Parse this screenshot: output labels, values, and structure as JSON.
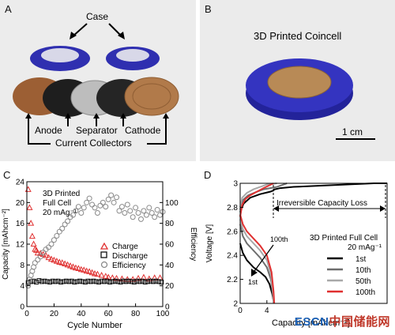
{
  "panels": {
    "a": {
      "label": "A",
      "case_label": "Case",
      "part_labels": [
        "Anode",
        "Separator",
        "Cathode"
      ],
      "collector_label": "Current Collectors"
    },
    "b": {
      "label": "B",
      "title": "3D Printed Coincell",
      "scale_label": "1 cm"
    },
    "c": {
      "label": "C",
      "annotation_lines": [
        "3D Printed",
        "Full Cell",
        "20 mAg⁻¹"
      ],
      "legend": [
        "Charge",
        "Discharge",
        "Efficiency"
      ]
    },
    "d": {
      "label": "D",
      "annotations": {
        "capacity_loss": "Irreversible Capacity Loss",
        "hundredth": "100th",
        "first": "1st"
      },
      "legend_title_lines": [
        "3D Printed Full Cell",
        "20 mAg⁻¹"
      ],
      "legend": [
        "1st",
        "10th",
        "50th",
        "100th"
      ]
    }
  },
  "chart_data": [
    {
      "type": "scatter",
      "panel": "C",
      "xlabel": "Cycle Number",
      "ylabel": "Capacity [mAhcm⁻²]",
      "y2label": "Efficiency",
      "xlim": [
        0,
        100
      ],
      "ylim": [
        0,
        24
      ],
      "y2lim": [
        0,
        120
      ],
      "xticks": [
        0,
        20,
        40,
        60,
        80,
        100
      ],
      "yticks": [
        0,
        4,
        8,
        12,
        16,
        20,
        24
      ],
      "y2ticks": [
        0,
        20,
        40,
        60,
        80,
        100
      ],
      "grid": false,
      "legend_position": "center-right",
      "series": [
        {
          "name": "Charge",
          "color": "#e03030",
          "marker": "triangle",
          "x": [
            1,
            2,
            3,
            4,
            5,
            6,
            7,
            8,
            10,
            12,
            14,
            16,
            18,
            20,
            22,
            24,
            26,
            28,
            30,
            32,
            34,
            36,
            38,
            40,
            42,
            44,
            46,
            48,
            50,
            52,
            55,
            58,
            60,
            63,
            66,
            70,
            74,
            78,
            82,
            86,
            90,
            94,
            98
          ],
          "values": [
            22.5,
            19,
            16,
            13.5,
            12,
            11,
            10.8,
            10.3,
            10.2,
            10,
            9.8,
            9.4,
            9.1,
            8.9,
            8.7,
            8.5,
            8.4,
            8.2,
            8,
            7.8,
            7.6,
            7.4,
            7.3,
            7.1,
            7,
            6.8,
            6.7,
            6.5,
            6.3,
            6.2,
            6,
            5.8,
            5.6,
            5.5,
            5.4,
            5.3,
            5.2,
            5.2,
            5.4,
            5.6,
            5.3,
            5.5,
            5.5
          ]
        },
        {
          "name": "Discharge",
          "color": "#111111",
          "marker": "square",
          "x": [
            1,
            3,
            5,
            7,
            9,
            11,
            13,
            15,
            17,
            19,
            21,
            23,
            25,
            27,
            29,
            31,
            33,
            35,
            37,
            39,
            41,
            43,
            45,
            47,
            49,
            51,
            53,
            55,
            57,
            59,
            61,
            63,
            65,
            67,
            69,
            71,
            73,
            75,
            77,
            79,
            81,
            83,
            85,
            87,
            89,
            91,
            93,
            95,
            97,
            99
          ],
          "values": [
            4.6,
            4.8,
            4.9,
            4.7,
            5,
            4.8,
            4.9,
            4.8,
            4.7,
            4.9,
            4.8,
            4.9,
            4.7,
            4.8,
            4.9,
            4.8,
            4.9,
            4.7,
            4.8,
            4.9,
            4.8,
            4.7,
            4.9,
            4.8,
            4.9,
            4.8,
            4.7,
            4.9,
            4.8,
            4.9,
            4.7,
            4.8,
            4.9,
            4.8,
            4.7,
            4.9,
            4.8,
            4.9,
            4.8,
            4.7,
            4.9,
            4.8,
            4.9,
            4.7,
            4.8,
            4.9,
            4.8,
            4.9,
            4.8,
            4.7
          ]
        },
        {
          "name": "Efficiency",
          "color": "#8a8a8a",
          "marker": "circle",
          "axis": "right",
          "x": [
            1,
            2,
            3,
            4,
            5,
            6,
            8,
            10,
            12,
            14,
            16,
            18,
            20,
            22,
            24,
            26,
            28,
            30,
            32,
            34,
            36,
            38,
            40,
            42,
            44,
            46,
            48,
            50,
            52,
            54,
            56,
            58,
            60,
            62,
            64,
            66,
            68,
            70,
            72,
            74,
            76,
            78,
            80,
            82,
            84,
            86,
            88,
            90,
            92,
            94,
            96,
            98,
            100
          ],
          "values": [
            20,
            26,
            30,
            34,
            38,
            42,
            45,
            48,
            52,
            55,
            57,
            60,
            64,
            68,
            72,
            75,
            79,
            82,
            86,
            88,
            92,
            96,
            90,
            95,
            100,
            104,
            98,
            95,
            90,
            97,
            100,
            96,
            103,
            107,
            100,
            105,
            92,
            96,
            90,
            98,
            92,
            86,
            95,
            90,
            84,
            92,
            88,
            95,
            90,
            86,
            93,
            88,
            91
          ]
        }
      ]
    },
    {
      "type": "line",
      "panel": "D",
      "xlabel": "Capacity [mAhcm⁻²]",
      "ylabel": "Voltage [V]",
      "xlim": [
        0,
        22
      ],
      "ylim": [
        2,
        3
      ],
      "xticks": [
        0,
        4
      ],
      "yticks": [
        2,
        2.2,
        2.4,
        2.6,
        2.8,
        3
      ],
      "grid": false,
      "legend_position": "lower-right",
      "series": [
        {
          "name": "1st",
          "color": "#000000",
          "x": [
            0,
            0.5,
            1.5,
            3,
            4.5,
            5,
            5.1,
            5.2,
            6,
            8,
            12,
            16,
            18,
            20,
            21.5,
            22
          ],
          "y": [
            2.76,
            2.83,
            2.88,
            2.91,
            2.93,
            2.94,
            2.95,
            2.95,
            2.96,
            2.97,
            2.98,
            2.99,
            2.995,
            3,
            3,
            3
          ]
        },
        {
          "name": "10th",
          "color": "#6d6d6d",
          "x": [
            0,
            0.4,
            1.2,
            2.5,
            3.5,
            4.5,
            5.5,
            6.5,
            7
          ],
          "y": [
            2.78,
            2.86,
            2.9,
            2.93,
            2.95,
            2.96,
            2.97,
            2.99,
            3
          ]
        },
        {
          "name": "50th",
          "color": "#a8a8a8",
          "x": [
            0,
            0.3,
            1,
            2,
            3,
            4,
            5.5
          ],
          "y": [
            2.8,
            2.88,
            2.92,
            2.95,
            2.97,
            2.99,
            3
          ]
        },
        {
          "name": "100th",
          "color": "#e03030",
          "x": [
            0,
            0.3,
            0.8,
            1.5,
            2.5,
            3.5,
            5
          ],
          "y": [
            2.72,
            2.82,
            2.87,
            2.9,
            2.93,
            2.96,
            3
          ]
        }
      ]
    }
  ],
  "discharge_curves": [
    {
      "name": "1st",
      "color": "#000000",
      "x": [
        0,
        0.4,
        1,
        2,
        3,
        3.8,
        4.4,
        4.8,
        5,
        5.1
      ],
      "y": [
        2.5,
        2.42,
        2.36,
        2.3,
        2.26,
        2.22,
        2.16,
        2.08,
        2.02,
        2
      ]
    },
    {
      "name": "10th",
      "color": "#6d6d6d",
      "x": [
        0,
        0.4,
        1,
        2,
        3,
        4,
        4.6,
        4.9,
        5
      ],
      "y": [
        2.66,
        2.56,
        2.5,
        2.44,
        2.38,
        2.3,
        2.2,
        2.08,
        2
      ]
    },
    {
      "name": "50th",
      "color": "#a8a8a8",
      "x": [
        0,
        0.4,
        1,
        2,
        3,
        4,
        4.6,
        4.9,
        5
      ],
      "y": [
        2.7,
        2.62,
        2.56,
        2.5,
        2.44,
        2.36,
        2.24,
        2.1,
        2
      ]
    },
    {
      "name": "100th",
      "color": "#e03030",
      "x": [
        0,
        0.4,
        1,
        2,
        3,
        4,
        4.7,
        5,
        5.1
      ],
      "y": [
        2.74,
        2.66,
        2.6,
        2.54,
        2.48,
        2.4,
        2.26,
        2.1,
        2
      ]
    }
  ],
  "watermark": {
    "part1": "ESCN",
    "part2": "中国储能网"
  },
  "colors": {
    "case_blue": "#2f2fb0",
    "copper": "#a8703f"
  }
}
